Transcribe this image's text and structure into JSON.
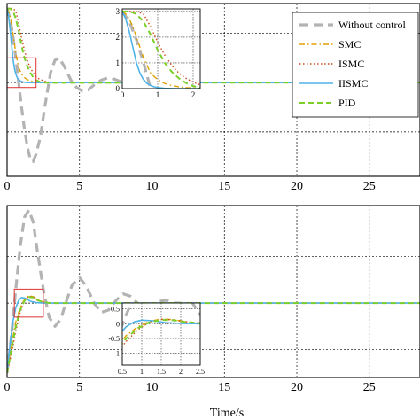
{
  "figure": {
    "xlabel": "Time/s"
  },
  "colors": {
    "without_control": "#b3b3b3",
    "smc": "#e0a000",
    "ismc": "#d04a1a",
    "iismc": "#4fb3e8",
    "pid": "#7ccf2a",
    "zoom_box": "#e03030",
    "grid": "#000000"
  },
  "chart_data": [
    {
      "type": "line",
      "xlim": [
        0,
        28.5
      ],
      "ylim": [
        -3.8,
        3.2
      ],
      "grid": true,
      "x_ticks": [
        0,
        5,
        10,
        15,
        20,
        25
      ],
      "x_tick_labels": [
        "0",
        "5",
        "10",
        "15",
        "20",
        "25"
      ],
      "legend": {
        "placement": "top-right",
        "entries": [
          "Without control",
          "SMC",
          "ISMC",
          "IISMC",
          "PID"
        ]
      },
      "series": [
        {
          "name": "Without control",
          "x": [
            0,
            0.2,
            0.4,
            0.6,
            0.8,
            1.0,
            1.2,
            1.4,
            1.6,
            1.8,
            2.0,
            2.3,
            2.6,
            3.0,
            3.3,
            3.6,
            4.0,
            4.4,
            4.8,
            5.2,
            5.6,
            6.0,
            6.5,
            7.0,
            7.5,
            8.0,
            8.5,
            9.0,
            9.5,
            10.0
          ],
          "y": [
            3.0,
            2.6,
            1.9,
            1.0,
            0.0,
            -1.0,
            -1.9,
            -2.6,
            -3.1,
            -3.2,
            -2.9,
            -2.2,
            -1.0,
            0.4,
            0.9,
            1.0,
            0.6,
            0.1,
            -0.2,
            -0.35,
            -0.3,
            -0.1,
            0.1,
            0.2,
            0.12,
            0.0,
            -0.08,
            -0.04,
            0.02,
            0.0
          ]
        },
        {
          "name": "SMC",
          "x": [
            0,
            0.1,
            0.2,
            0.3,
            0.4,
            0.5,
            0.6,
            0.7,
            0.8,
            1.0,
            1.2,
            1.4,
            1.6,
            1.8,
            2.0,
            2.5,
            3.0,
            28.5
          ],
          "y": [
            3.0,
            2.9,
            2.7,
            2.4,
            2.0,
            1.6,
            1.2,
            0.9,
            0.6,
            0.35,
            0.2,
            0.12,
            0.07,
            0.04,
            0.02,
            0.005,
            0,
            0
          ]
        },
        {
          "name": "ISMC",
          "x": [
            0,
            0.2,
            0.4,
            0.6,
            0.8,
            1.0,
            1.2,
            1.4,
            1.6,
            1.8,
            2.0,
            2.2,
            2.6,
            3.0,
            28.5
          ],
          "y": [
            3.0,
            3.0,
            3.0,
            2.9,
            2.4,
            1.8,
            1.3,
            0.9,
            0.6,
            0.4,
            0.25,
            0.15,
            0.05,
            0.01,
            0
          ]
        },
        {
          "name": "IISMC",
          "x": [
            0,
            0.1,
            0.2,
            0.3,
            0.4,
            0.5,
            0.6,
            0.7,
            0.8,
            0.9,
            1.0,
            1.2,
            1.5,
            2.0,
            28.5
          ],
          "y": [
            3.0,
            2.7,
            2.2,
            1.6,
            1.0,
            0.6,
            0.35,
            0.2,
            0.12,
            0.07,
            0.04,
            0.01,
            0,
            0,
            0
          ]
        },
        {
          "name": "PID",
          "x": [
            0,
            0.2,
            0.4,
            0.6,
            0.8,
            1.0,
            1.2,
            1.4,
            1.6,
            1.8,
            2.0,
            2.2,
            2.5,
            3.0,
            28.5
          ],
          "y": [
            3.0,
            3.0,
            2.9,
            2.6,
            2.1,
            1.5,
            1.0,
            0.65,
            0.4,
            0.22,
            0.1,
            0.04,
            0.0,
            -0.01,
            0
          ]
        }
      ],
      "zoom_region": {
        "x": [
          0,
          2.0
        ],
        "y": [
          -0.2,
          1.0
        ]
      },
      "inset": {
        "xlim": [
          0,
          2.2
        ],
        "ylim": [
          0,
          3.1
        ],
        "x_ticks": [
          0,
          1,
          2
        ],
        "x_tick_labels": [
          "0",
          "1",
          "2"
        ],
        "y_ticks": [
          0,
          1,
          2,
          3
        ],
        "y_tick_labels": [
          "0",
          "1",
          "2",
          "3"
        ]
      }
    },
    {
      "type": "line",
      "xlim": [
        0,
        28.5
      ],
      "ylim": [
        -1.6,
        2.1
      ],
      "grid": true,
      "x_ticks": [
        0,
        5,
        10,
        15,
        20,
        25
      ],
      "x_tick_labels": [
        "0",
        "5",
        "10",
        "15",
        "20",
        "25"
      ],
      "series": [
        {
          "name": "Without control",
          "x": [
            0,
            0.3,
            0.6,
            0.9,
            1.2,
            1.5,
            1.8,
            2.1,
            2.5,
            2.9,
            3.3,
            3.7,
            4.1,
            4.5,
            5.0,
            5.5,
            6.0,
            6.5,
            7.0,
            7.5,
            8.0,
            8.5,
            9.0,
            9.5,
            10.0,
            10.5,
            11.0,
            11.5,
            12.0
          ],
          "y": [
            -1.5,
            -0.7,
            0.3,
            1.2,
            1.85,
            2.0,
            1.75,
            1.1,
            0.3,
            -0.3,
            -0.5,
            -0.35,
            0.05,
            0.4,
            0.55,
            0.35,
            0.0,
            -0.2,
            -0.15,
            0.05,
            0.2,
            0.15,
            0.0,
            -0.08,
            -0.05,
            0.04,
            0.06,
            0.0,
            0.0
          ]
        },
        {
          "name": "SMC",
          "x": [
            0,
            0.3,
            0.6,
            0.9,
            1.2,
            1.5,
            1.8,
            2.2,
            2.6,
            3.0,
            28.5
          ],
          "y": [
            -1.5,
            -0.9,
            -0.4,
            -0.1,
            0.08,
            0.16,
            0.14,
            0.06,
            0.01,
            0,
            0
          ]
        },
        {
          "name": "ISMC",
          "x": [
            0,
            0.3,
            0.6,
            0.9,
            1.2,
            1.5,
            1.8,
            2.2,
            2.6,
            3.0,
            28.5
          ],
          "y": [
            -1.5,
            -1.1,
            -0.6,
            -0.2,
            0.05,
            0.15,
            0.13,
            0.05,
            0.01,
            0,
            0
          ]
        },
        {
          "name": "IISMC",
          "x": [
            0,
            0.2,
            0.4,
            0.6,
            0.8,
            1.0,
            1.3,
            1.6,
            2.0,
            2.5,
            28.5
          ],
          "y": [
            -1.5,
            -0.9,
            -0.4,
            -0.1,
            0.06,
            0.12,
            0.1,
            0.04,
            0.01,
            0,
            0
          ]
        },
        {
          "name": "PID",
          "x": [
            0,
            0.3,
            0.6,
            0.9,
            1.2,
            1.5,
            1.8,
            2.1,
            2.5,
            3.0,
            28.5
          ],
          "y": [
            -1.5,
            -1.0,
            -0.5,
            -0.15,
            0.05,
            0.13,
            0.12,
            0.06,
            0.02,
            0,
            0
          ]
        }
      ],
      "zoom_region": {
        "x": [
          0.5,
          2.5
        ],
        "y": [
          -0.3,
          0.3
        ]
      },
      "inset": {
        "xlim": [
          0.5,
          2.5
        ],
        "ylim": [
          -1.4,
          0.7
        ],
        "x_ticks": [
          0.5,
          1,
          1.5,
          2,
          2.5
        ],
        "x_tick_labels": [
          "0.5",
          "1",
          "1.5",
          "2",
          "2.5"
        ],
        "y_ticks": [
          -1,
          -0.5,
          0,
          0.5
        ],
        "y_tick_labels": [
          "-1",
          "-0.5",
          "0",
          "0.5"
        ]
      }
    }
  ]
}
